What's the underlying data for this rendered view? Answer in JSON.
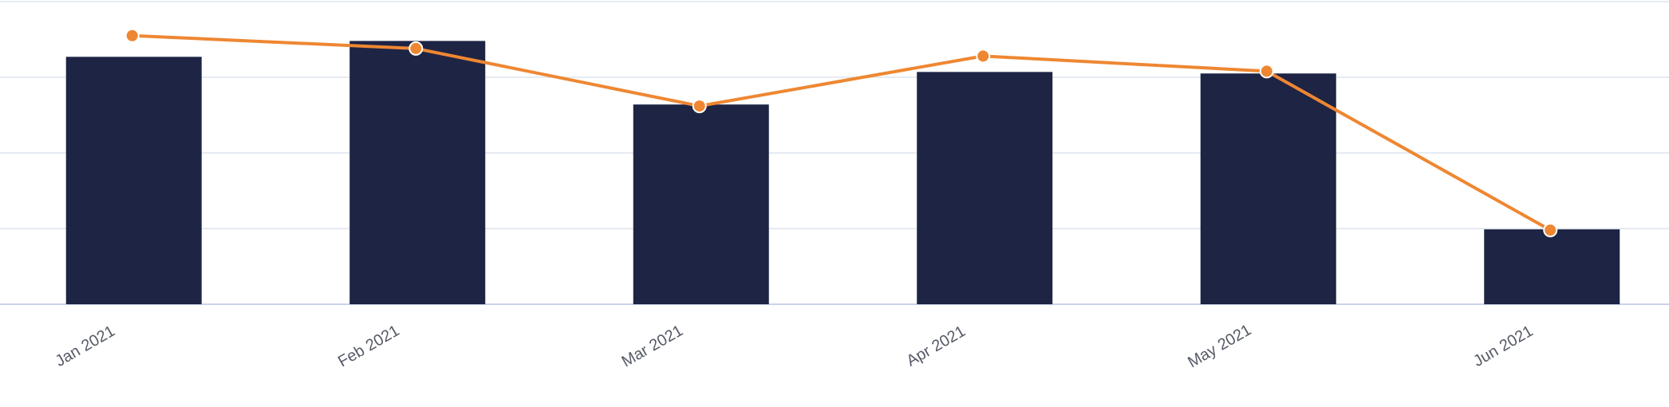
{
  "chart_data": {
    "type": "bar",
    "title": "",
    "xlabel": "",
    "ylabel": "",
    "categories": [
      "Jan 2021",
      "Feb 2021",
      "Mar 2021",
      "Apr 2021",
      "May 2021",
      "Jun 2021"
    ],
    "ylim": [
      0,
      4
    ],
    "grid": true,
    "legend": "none",
    "series": [
      {
        "type": "bar",
        "color": "#1e2444",
        "values": [
          3.27,
          3.48,
          2.64,
          3.07,
          3.05,
          0.99
        ]
      },
      {
        "type": "line",
        "color": "#ee8732",
        "values": [
          3.55,
          3.38,
          2.62,
          3.28,
          3.08,
          0.98
        ]
      }
    ]
  },
  "colors": {
    "grid": "#dde3ee",
    "baseline": "#b9c6e4",
    "tick_label": "#555a66",
    "background": "#ffffff"
  }
}
